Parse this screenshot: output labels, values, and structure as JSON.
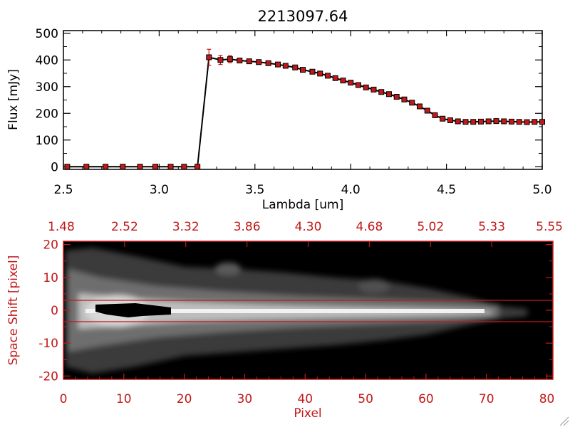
{
  "chart_data": [
    {
      "type": "line",
      "title": "2213097.64",
      "xlabel": "Lambda [um]",
      "ylabel": "Flux [mJy]",
      "xlim": [
        2.5,
        5.0
      ],
      "ylim": [
        -10,
        510
      ],
      "xticks": [
        "2.5",
        "3.0",
        "3.5",
        "4.0",
        "4.5",
        "5.0"
      ],
      "yticks": [
        "0",
        "100",
        "200",
        "300",
        "400",
        "500"
      ],
      "colors": {
        "line": "#000000",
        "marker": "#c21818",
        "axes": "#000000"
      },
      "grid": false,
      "series": [
        {
          "x": [
            2.52,
            2.62,
            2.72,
            2.81,
            2.9,
            2.98,
            3.06,
            3.13,
            3.2,
            3.26,
            3.32,
            3.37,
            3.42,
            3.47,
            3.52,
            3.57,
            3.62,
            3.66,
            3.71,
            3.75,
            3.8,
            3.84,
            3.88,
            3.92,
            3.96,
            4.0,
            4.04,
            4.08,
            4.12,
            4.16,
            4.2,
            4.24,
            4.28,
            4.32,
            4.36,
            4.4,
            4.44,
            4.48,
            4.52,
            4.56,
            4.6,
            4.64,
            4.68,
            4.72,
            4.76,
            4.8,
            4.84,
            4.88,
            4.92,
            4.96,
            5.0
          ],
          "y": [
            0,
            0,
            0,
            0,
            0,
            0,
            0,
            0,
            0,
            410,
            400,
            403,
            398,
            395,
            392,
            388,
            383,
            378,
            372,
            363,
            356,
            349,
            341,
            332,
            323,
            315,
            306,
            297,
            289,
            280,
            272,
            262,
            252,
            240,
            226,
            210,
            193,
            180,
            174,
            170,
            168,
            168,
            169,
            170,
            171,
            170,
            169,
            168,
            167,
            168,
            168
          ]
        }
      ],
      "error_bars": [
        {
          "x": 3.26,
          "lo": 380,
          "hi": 440
        },
        {
          "x": 3.32,
          "lo": 383,
          "hi": 417
        },
        {
          "x": 3.37,
          "lo": 390,
          "hi": 416
        }
      ]
    },
    {
      "type": "heatmap",
      "xlabel": "Pixel",
      "ylabel": "Space Shift [pixel]",
      "xlim": [
        0,
        81
      ],
      "ylim": [
        -21,
        21
      ],
      "xticks": [
        "0",
        "10",
        "20",
        "30",
        "40",
        "50",
        "60",
        "70",
        "80"
      ],
      "yticks": [
        "-20",
        "-10",
        "0",
        "10",
        "20"
      ],
      "top_axis_ticks": [
        "1.48",
        "2.52",
        "3.32",
        "3.86",
        "4.30",
        "4.68",
        "5.02",
        "5.33",
        "5.55"
      ],
      "colormap": "grayscale",
      "extraction_window": [
        -3,
        3
      ],
      "colors": {
        "axes": "#c21818",
        "window_lines": "#c21818"
      }
    }
  ]
}
